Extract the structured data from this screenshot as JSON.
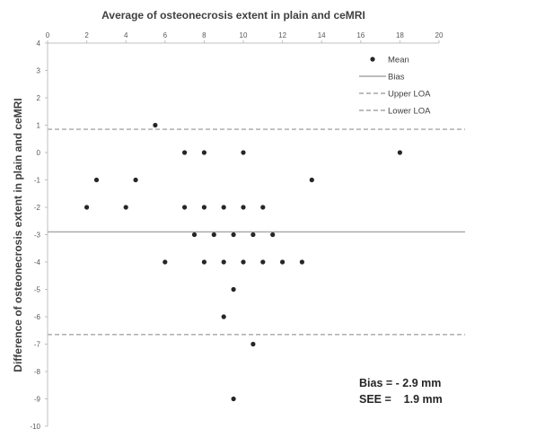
{
  "chart_data": {
    "type": "scatter",
    "title": "Average of osteonecrosis extent in plain and ceMRI",
    "xlabel": "",
    "ylabel": "Difference of osteonecrosis extent in plain and ceMRI",
    "xlim": [
      0,
      20
    ],
    "ylim": [
      -10,
      4
    ],
    "x_ticks": [
      0,
      2,
      4,
      6,
      8,
      10,
      12,
      14,
      16,
      18,
      20
    ],
    "y_ticks": [
      4,
      3,
      2,
      1,
      0,
      -1,
      -2,
      -3,
      -4,
      -5,
      -6,
      -7,
      -8,
      -9,
      -10
    ],
    "x_axis_position": "top",
    "grid": false,
    "legend_position": "top-right",
    "series": [
      {
        "name": "Mean",
        "marker": "circle",
        "color": "#262626",
        "points": [
          [
            5.5,
            1
          ],
          [
            7,
            0
          ],
          [
            8,
            0
          ],
          [
            10,
            0
          ],
          [
            18,
            0
          ],
          [
            2.5,
            -1
          ],
          [
            4.5,
            -1
          ],
          [
            13.5,
            -1
          ],
          [
            2,
            -2
          ],
          [
            4,
            -2
          ],
          [
            7,
            -2
          ],
          [
            8,
            -2
          ],
          [
            9,
            -2
          ],
          [
            10,
            -2
          ],
          [
            11,
            -2
          ],
          [
            7.5,
            -3
          ],
          [
            8.5,
            -3
          ],
          [
            9.5,
            -3
          ],
          [
            10.5,
            -3
          ],
          [
            11.5,
            -3
          ],
          [
            6,
            -4
          ],
          [
            8,
            -4
          ],
          [
            9,
            -4
          ],
          [
            10,
            -4
          ],
          [
            11,
            -4
          ],
          [
            12,
            -4
          ],
          [
            13,
            -4
          ],
          [
            9.5,
            -5
          ],
          [
            9,
            -6
          ],
          [
            10.5,
            -7
          ],
          [
            9.5,
            -9
          ]
        ]
      }
    ],
    "lines": [
      {
        "name": "Bias",
        "y": -2.9,
        "style": "solid",
        "color": "#a6a6a6"
      },
      {
        "name": "Upper LOA",
        "y": 0.85,
        "style": "dashed",
        "color": "#a6a6a6"
      },
      {
        "name": "Lower LOA",
        "y": -6.65,
        "style": "dashed",
        "color": "#a6a6a6"
      }
    ],
    "legend": [
      "Mean",
      "Bias",
      "Upper LOA",
      "Lower LOA"
    ],
    "annotations": {
      "bias_text": "Bias = - 2.9 mm",
      "see_text": "SEE =    1.9 mm"
    }
  }
}
